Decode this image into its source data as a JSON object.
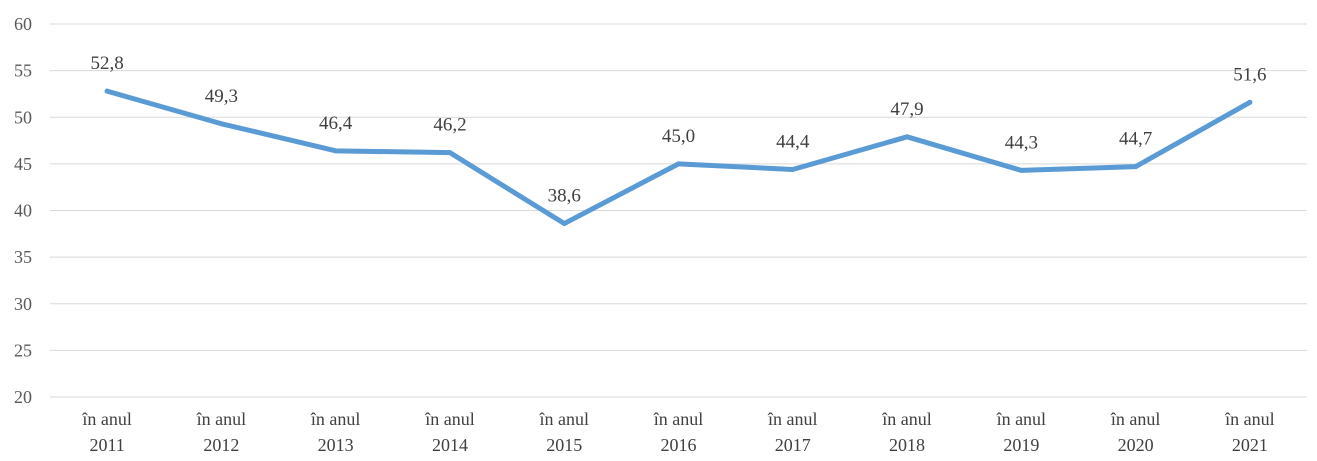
{
  "chart_data": {
    "type": "line",
    "categories": [
      [
        "în anul",
        "2011"
      ],
      [
        "în anul",
        "2012"
      ],
      [
        "în anul",
        "2013"
      ],
      [
        "în anul",
        "2014"
      ],
      [
        "în anul",
        "2015"
      ],
      [
        "în anul",
        "2016"
      ],
      [
        "în anul",
        "2017"
      ],
      [
        "în anul",
        "2018"
      ],
      [
        "în anul",
        "2019"
      ],
      [
        "în anul",
        "2020"
      ],
      [
        "în anul",
        "2021"
      ]
    ],
    "series": [
      {
        "values": [
          52.8,
          49.3,
          46.4,
          46.2,
          38.6,
          45.0,
          44.4,
          47.9,
          44.3,
          44.7,
          51.6
        ],
        "data_labels": [
          "52,8",
          "49,3",
          "46,4",
          "46,2",
          "38,6",
          "45,0",
          "44,4",
          "47,9",
          "44,3",
          "44,7",
          "51,6"
        ],
        "color": "#5b9bd5"
      }
    ],
    "ylim": [
      20,
      60
    ],
    "yticks": [
      20,
      25,
      30,
      35,
      40,
      45,
      50,
      55,
      60
    ],
    "grid": true,
    "legend": "none"
  }
}
